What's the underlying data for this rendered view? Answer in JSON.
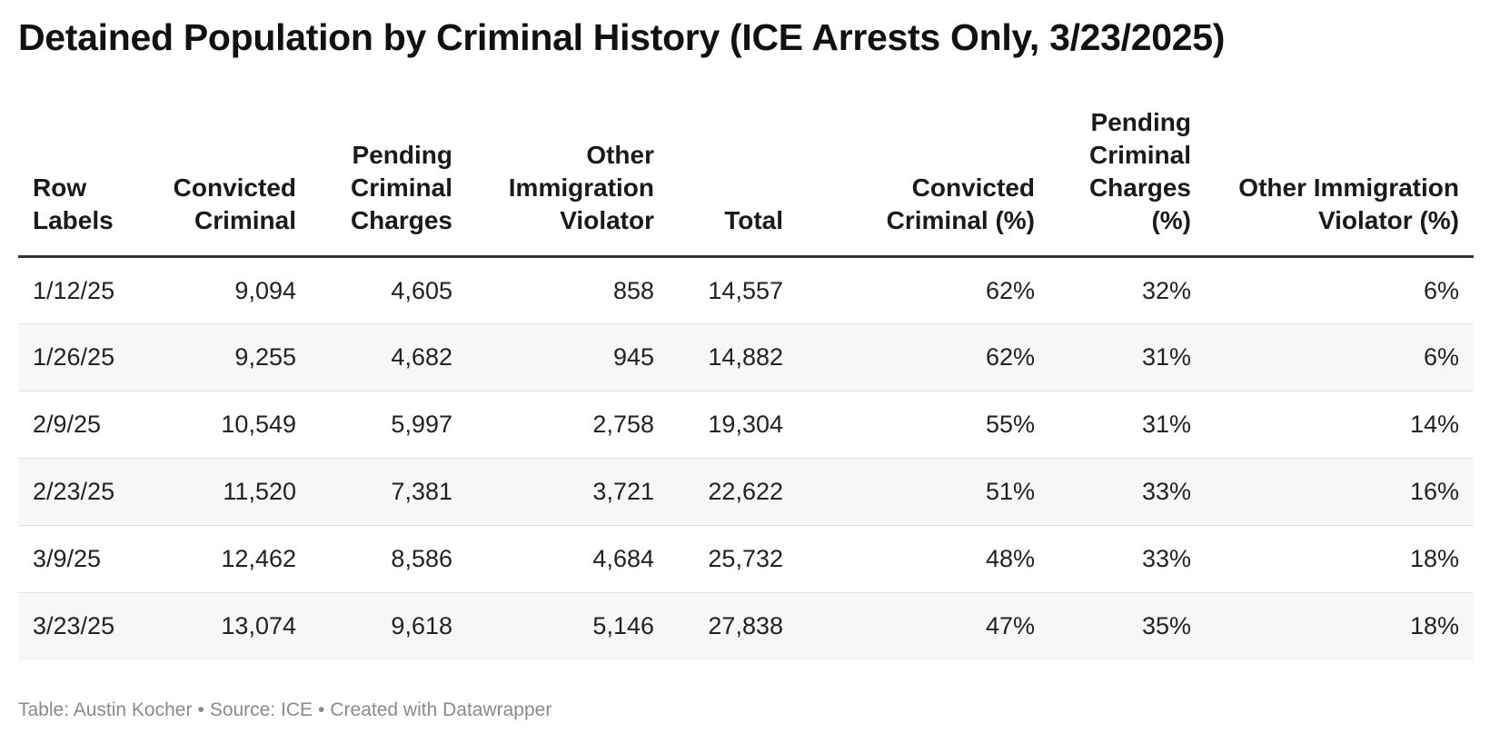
{
  "chart_data": {
    "type": "table",
    "title": "Detained Population by Criminal History (ICE Arrests Only, 3/23/2025)",
    "columns": [
      {
        "label": "Row Labels",
        "align": "left"
      },
      {
        "label": "Convicted Criminal",
        "align": "right"
      },
      {
        "label": "Pending Criminal Charges",
        "align": "right"
      },
      {
        "label": "Other Immigration Violator",
        "align": "right"
      },
      {
        "label": "Total",
        "align": "right"
      },
      {
        "label": "Convicted Criminal (%)",
        "align": "right"
      },
      {
        "label": "Pending Criminal Charges (%)",
        "align": "right"
      },
      {
        "label": "Other Immigration Violator (%)",
        "align": "right"
      }
    ],
    "rows": [
      [
        "1/12/25",
        "9,094",
        "4,605",
        "858",
        "14,557",
        "62%",
        "32%",
        "6%"
      ],
      [
        "1/26/25",
        "9,255",
        "4,682",
        "945",
        "14,882",
        "62%",
        "31%",
        "6%"
      ],
      [
        "2/9/25",
        "10,549",
        "5,997",
        "2,758",
        "19,304",
        "55%",
        "31%",
        "14%"
      ],
      [
        "2/23/25",
        "11,520",
        "7,381",
        "3,721",
        "22,622",
        "51%",
        "33%",
        "16%"
      ],
      [
        "3/9/25",
        "12,462",
        "8,586",
        "4,684",
        "25,732",
        "48%",
        "33%",
        "18%"
      ],
      [
        "3/23/25",
        "13,074",
        "9,618",
        "5,146",
        "27,838",
        "47%",
        "35%",
        "18%"
      ]
    ]
  },
  "footer": {
    "byline": "Table: Austin Kocher",
    "source": "Source: ICE",
    "credit": "Created with Datawrapper",
    "separator": "•"
  }
}
